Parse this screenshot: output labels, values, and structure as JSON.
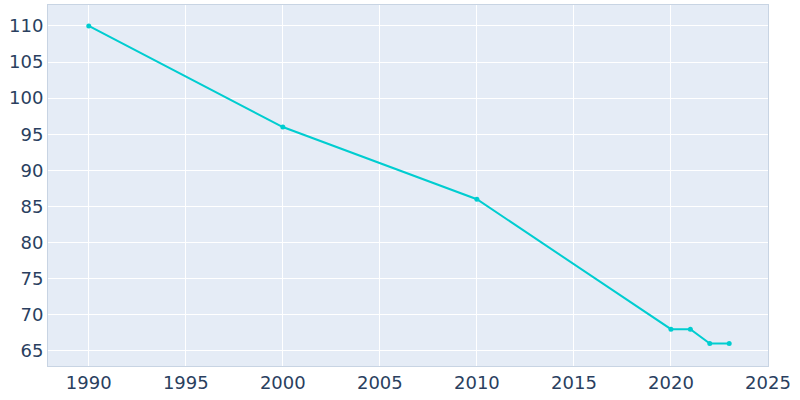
{
  "chart_data": {
    "type": "line",
    "x": [
      1990,
      2000,
      2010,
      2020,
      2021,
      2022,
      2023
    ],
    "values": [
      110,
      96,
      86,
      68,
      68,
      66,
      66
    ],
    "color": "#00cdd0",
    "marker": "circle",
    "xlim": [
      1987.9,
      2025
    ],
    "ylim": [
      62.9,
      112.9
    ],
    "xticks": [
      1990,
      1995,
      2000,
      2005,
      2010,
      2015,
      2020,
      2025
    ],
    "yticks": [
      65,
      70,
      75,
      80,
      85,
      90,
      95,
      100,
      105,
      110
    ],
    "grid": true
  }
}
